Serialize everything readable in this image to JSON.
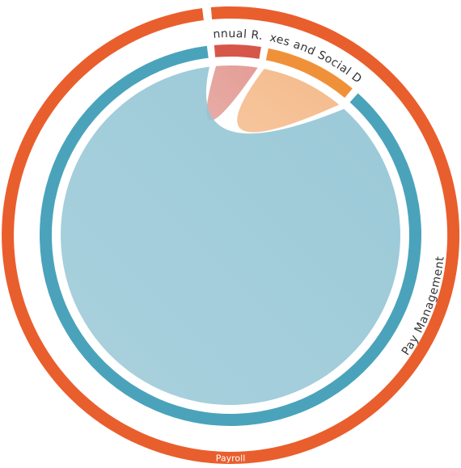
{
  "chart_data": {
    "type": "chord",
    "root": {
      "label": "Payroll",
      "color": "#e95e2d",
      "children": [
        {
          "label": "Annual R...",
          "value": 4,
          "color": "#d7564a",
          "ribbon_color": "#e29890"
        },
        {
          "label": "Taxes and Social D...",
          "value": 8,
          "color": "#f0913a",
          "ribbon_color": "#f4b785"
        },
        {
          "label": "Pay Management",
          "value": 88,
          "color": "#4aa3bb",
          "ribbon_color": "#95c6d5"
        }
      ]
    }
  }
}
